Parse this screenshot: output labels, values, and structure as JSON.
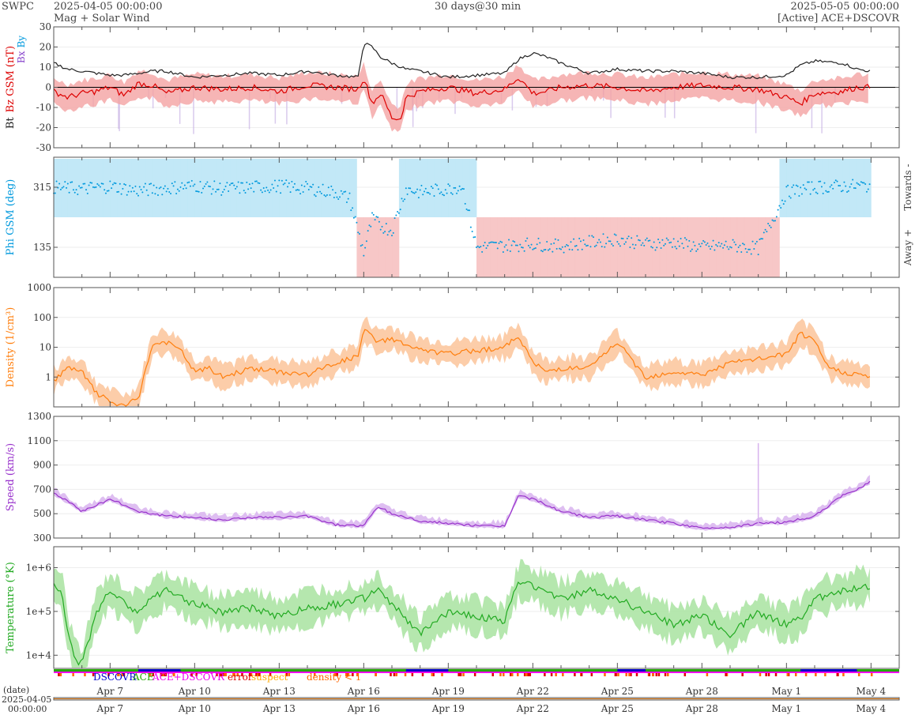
{
  "header": {
    "agency": "SWPC",
    "start_time": "2025-04-05 00:00:00",
    "product": "Mag + Solar Wind",
    "span": "30 days@30 min",
    "end_time": "2025-05-05 00:00:00",
    "source": "[Active] ACE+DSCOVR"
  },
  "x_axis": {
    "start": "2025-04-05 00:00",
    "end": "2025-05-05 00:00",
    "tick_labels": [
      "Apr 7",
      "Apr 10",
      "Apr 13",
      "Apr 16",
      "Apr 19",
      "Apr 22",
      "Apr 25",
      "Apr 28",
      "May 1",
      "May 4"
    ],
    "tick_days": [
      2,
      5,
      8,
      11,
      14,
      17,
      20,
      23,
      26,
      29
    ],
    "footer_label": "(date)",
    "footer_date": "2025-04-05",
    "footer_time": "00:00:00"
  },
  "legend": {
    "items": [
      {
        "label": "DSCOVR",
        "color": "#0000cc"
      },
      {
        "label": "ACE",
        "color": "#22aa00"
      },
      {
        "label": "ACE+DSCOVR",
        "color": "#ee00ee"
      },
      {
        "label": "error",
        "color": "#dd0000"
      },
      {
        "label": "suspect",
        "color": "#ffaa00"
      },
      {
        "label": "density < 1",
        "color": "#ff6600"
      }
    ]
  },
  "chart_data": [
    {
      "type": "scatter",
      "panel": "mag",
      "ylabel_parts": [
        {
          "text": "Bt",
          "color": "#222222"
        },
        {
          "text": "Bz GSM (nT)",
          "color": "#dd0000"
        },
        {
          "text": "Bx",
          "color": "#8844cc"
        },
        {
          "text": "By",
          "color": "#0099dd"
        }
      ],
      "ylim": [
        -30,
        30
      ],
      "yticks": [
        -30,
        -20,
        -10,
        0,
        10,
        20,
        30
      ],
      "series": [
        {
          "name": "Bt",
          "color": "#222222",
          "x_days": [
            0,
            0.5,
            1,
            1.5,
            2,
            2.5,
            3,
            3.5,
            4,
            5,
            6,
            7,
            8,
            9,
            10,
            10.8,
            11,
            11.3,
            11.6,
            12,
            12.5,
            13,
            14,
            15,
            16,
            16.5,
            17,
            17.5,
            18,
            19,
            20,
            21,
            22,
            23,
            24,
            25,
            26,
            26.5,
            27,
            28,
            28.5,
            29
          ],
          "values": [
            12,
            9,
            8,
            7,
            6,
            6,
            7,
            8,
            8,
            5,
            6,
            7,
            6,
            8,
            6,
            5,
            22,
            20,
            15,
            12,
            9,
            8,
            5,
            6,
            7,
            14,
            17,
            15,
            12,
            7,
            9,
            8,
            8,
            7,
            5,
            5,
            6,
            11,
            13,
            12,
            9,
            8
          ]
        },
        {
          "name": "Bz GSM",
          "color": "#dd0000",
          "x_days": [
            0,
            0.5,
            1,
            1.5,
            2,
            2.5,
            3,
            3.5,
            4,
            5,
            6,
            7,
            8,
            9,
            10,
            10.8,
            11,
            11.3,
            11.6,
            12,
            12.3,
            12.5,
            13,
            14,
            15,
            16,
            16.5,
            17,
            17.5,
            18,
            19,
            20,
            21,
            22,
            23,
            24,
            25,
            26,
            26.5,
            27,
            28,
            28.5,
            29
          ],
          "values": [
            -2,
            -5,
            -3,
            -2,
            0,
            -4,
            2,
            1,
            -3,
            0,
            -1,
            0,
            -2,
            1,
            0,
            -1,
            5,
            -8,
            -3,
            -15,
            -16,
            -5,
            -2,
            0,
            -3,
            -1,
            5,
            -3,
            -2,
            0,
            1,
            0,
            -2,
            0,
            1,
            0,
            -1,
            -5,
            -8,
            -3,
            -2,
            0,
            0
          ]
        }
      ]
    },
    {
      "type": "scatter",
      "panel": "phi",
      "ylabel": "Phi GSM (deg)",
      "side_labels": [
        "Towards -",
        "Away +"
      ],
      "ylim": [
        45,
        405
      ],
      "yticks": [
        135,
        315
      ],
      "series": [
        {
          "name": "Phi GSM",
          "color": "#0099dd",
          "x_days": [
            0,
            1,
            2,
            3,
            4,
            5,
            6,
            7,
            8,
            9,
            10,
            10.5,
            11,
            11.3,
            11.6,
            12,
            12.5,
            13,
            14,
            14.5,
            15,
            16,
            17,
            18,
            19,
            20,
            21,
            22,
            23,
            24,
            25,
            26,
            27,
            28,
            29
          ],
          "values": [
            315,
            310,
            318,
            305,
            312,
            320,
            310,
            315,
            318,
            312,
            300,
            280,
            120,
            220,
            200,
            185,
            310,
            300,
            310,
            320,
            135,
            140,
            145,
            138,
            150,
            160,
            145,
            150,
            135,
            140,
            132,
            300,
            315,
            318,
            320
          ]
        }
      ]
    },
    {
      "type": "line",
      "panel": "density",
      "ylabel": "Density (1/cm³)",
      "yscale": "log",
      "ylim": [
        0.1,
        1000
      ],
      "yticks": [
        1,
        10,
        100,
        1000
      ],
      "series": [
        {
          "name": "Density",
          "color": "#ff7f0e",
          "x_days": [
            0,
            0.5,
            1,
            1.5,
            2,
            2.5,
            3,
            3.5,
            4,
            4.5,
            5,
            5.5,
            6,
            7,
            8,
            9,
            10,
            10.8,
            11,
            11.5,
            12,
            12.5,
            13,
            14,
            15,
            16,
            16.5,
            17,
            17.5,
            18,
            19,
            20,
            21,
            22,
            23,
            24,
            25,
            26,
            26.5,
            27,
            27.5,
            28,
            29
          ],
          "values": [
            0.8,
            2,
            1.5,
            0.3,
            0.15,
            0.1,
            0.2,
            12,
            15,
            8,
            1.5,
            2,
            1,
            2,
            1.5,
            1.2,
            3,
            5,
            40,
            15,
            20,
            12,
            8,
            6,
            8,
            10,
            25,
            3,
            1.5,
            2,
            2,
            15,
            1,
            1.5,
            1.2,
            3,
            4,
            6,
            30,
            15,
            2,
            1.5,
            1
          ]
        }
      ]
    },
    {
      "type": "line",
      "panel": "speed",
      "ylabel": "Speed (km/s)",
      "ylim": [
        300,
        1300
      ],
      "yticks": [
        300,
        500,
        700,
        900,
        1100,
        1300
      ],
      "series": [
        {
          "name": "Speed",
          "color": "#9933cc",
          "x_days": [
            0,
            0.5,
            1,
            2,
            3,
            4,
            5,
            6,
            7,
            8,
            9,
            10,
            11,
            11.5,
            12,
            13,
            14,
            15,
            16,
            16.5,
            17,
            18,
            19,
            20,
            21,
            22,
            23,
            24,
            25,
            26,
            27,
            28,
            28.5,
            29
          ],
          "values": [
            670,
            600,
            520,
            620,
            520,
            480,
            470,
            450,
            470,
            470,
            480,
            410,
            400,
            560,
            500,
            440,
            420,
            400,
            400,
            650,
            620,
            520,
            470,
            480,
            450,
            420,
            380,
            390,
            420,
            430,
            480,
            650,
            700,
            770
          ]
        }
      ]
    },
    {
      "type": "line",
      "panel": "temperature",
      "ylabel": "Temperature (°K)",
      "yscale": "log",
      "ylim": [
        5000,
        3000000
      ],
      "yticks": [
        10000,
        100000,
        1000000
      ],
      "ytick_labels": [
        "1e+4",
        "1e+5",
        "1e+6"
      ],
      "series": [
        {
          "name": "Temperature",
          "color": "#22aa22",
          "x_days": [
            0,
            0.3,
            0.5,
            0.8,
            1,
            1.5,
            2,
            2.5,
            3,
            3.5,
            4,
            5,
            6,
            7,
            8,
            9,
            10,
            11,
            11.5,
            12,
            13,
            14,
            15,
            16,
            16.5,
            17,
            18,
            19,
            20,
            21,
            22,
            23,
            24,
            25,
            26,
            26.5,
            27,
            28,
            29
          ],
          "values": [
            400000,
            300000,
            30000,
            8000,
            6000,
            100000,
            300000,
            150000,
            100000,
            200000,
            300000,
            150000,
            100000,
            120000,
            80000,
            120000,
            150000,
            200000,
            300000,
            150000,
            30000,
            100000,
            80000,
            60000,
            500000,
            400000,
            200000,
            300000,
            200000,
            100000,
            50000,
            80000,
            30000,
            100000,
            50000,
            70000,
            200000,
            300000,
            400000
          ]
        }
      ]
    }
  ]
}
